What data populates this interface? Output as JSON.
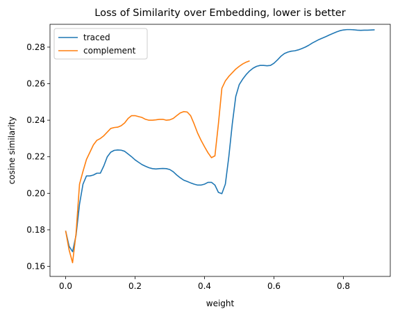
{
  "chart_data": {
    "type": "line",
    "title": "Loss of Similarity over Embedding, lower is better",
    "xlabel": "weight",
    "ylabel": "cosine similarity",
    "xlim": [
      -0.045,
      0.935
    ],
    "ylim": [
      0.1545,
      0.2925
    ],
    "xticks": [
      0.0,
      0.2,
      0.4,
      0.6,
      0.8
    ],
    "xtick_labels": [
      "0.0",
      "0.2",
      "0.4",
      "0.6",
      "0.8"
    ],
    "yticks": [
      0.16,
      0.18,
      0.2,
      0.22,
      0.24,
      0.26,
      0.28
    ],
    "ytick_labels": [
      "0.16",
      "0.18",
      "0.20",
      "0.22",
      "0.24",
      "0.26",
      "0.28"
    ],
    "grid": false,
    "legend_position": "top-left",
    "series": [
      {
        "name": "traced",
        "color": "#1f77b4",
        "points": [
          [
            0.0,
            0.1795
          ],
          [
            0.01,
            0.171
          ],
          [
            0.02,
            0.168
          ],
          [
            0.03,
            0.177
          ],
          [
            0.04,
            0.194
          ],
          [
            0.05,
            0.205
          ],
          [
            0.06,
            0.2095
          ],
          [
            0.07,
            0.2095
          ],
          [
            0.08,
            0.21
          ],
          [
            0.09,
            0.211
          ],
          [
            0.1,
            0.211
          ],
          [
            0.11,
            0.215
          ],
          [
            0.12,
            0.22
          ],
          [
            0.13,
            0.2225
          ],
          [
            0.14,
            0.2235
          ],
          [
            0.15,
            0.2237
          ],
          [
            0.16,
            0.2236
          ],
          [
            0.17,
            0.223
          ],
          [
            0.18,
            0.2215
          ],
          [
            0.19,
            0.22
          ],
          [
            0.2,
            0.2183
          ],
          [
            0.21,
            0.217
          ],
          [
            0.22,
            0.2157
          ],
          [
            0.23,
            0.2148
          ],
          [
            0.24,
            0.214
          ],
          [
            0.25,
            0.2135
          ],
          [
            0.26,
            0.2133
          ],
          [
            0.27,
            0.2135
          ],
          [
            0.28,
            0.2136
          ],
          [
            0.29,
            0.2135
          ],
          [
            0.3,
            0.213
          ],
          [
            0.31,
            0.2118
          ],
          [
            0.32,
            0.21
          ],
          [
            0.33,
            0.2085
          ],
          [
            0.34,
            0.2072
          ],
          [
            0.35,
            0.2065
          ],
          [
            0.36,
            0.2057
          ],
          [
            0.37,
            0.205
          ],
          [
            0.38,
            0.2045
          ],
          [
            0.39,
            0.2045
          ],
          [
            0.4,
            0.205
          ],
          [
            0.41,
            0.206
          ],
          [
            0.42,
            0.206
          ],
          [
            0.43,
            0.2045
          ],
          [
            0.44,
            0.2005
          ],
          [
            0.45,
            0.1998
          ],
          [
            0.46,
            0.205
          ],
          [
            0.47,
            0.22
          ],
          [
            0.48,
            0.238
          ],
          [
            0.49,
            0.253
          ],
          [
            0.5,
            0.2595
          ],
          [
            0.51,
            0.2625
          ],
          [
            0.52,
            0.265
          ],
          [
            0.53,
            0.267
          ],
          [
            0.54,
            0.2685
          ],
          [
            0.55,
            0.2695
          ],
          [
            0.56,
            0.27
          ],
          [
            0.57,
            0.27
          ],
          [
            0.58,
            0.2698
          ],
          [
            0.59,
            0.27
          ],
          [
            0.6,
            0.2712
          ],
          [
            0.61,
            0.273
          ],
          [
            0.62,
            0.275
          ],
          [
            0.63,
            0.2765
          ],
          [
            0.64,
            0.2773
          ],
          [
            0.65,
            0.2778
          ],
          [
            0.66,
            0.278
          ],
          [
            0.67,
            0.2785
          ],
          [
            0.68,
            0.2792
          ],
          [
            0.69,
            0.28
          ],
          [
            0.7,
            0.281
          ],
          [
            0.71,
            0.2822
          ],
          [
            0.72,
            0.2832
          ],
          [
            0.73,
            0.2842
          ],
          [
            0.74,
            0.285
          ],
          [
            0.75,
            0.2858
          ],
          [
            0.76,
            0.2867
          ],
          [
            0.77,
            0.2875
          ],
          [
            0.78,
            0.2883
          ],
          [
            0.79,
            0.289
          ],
          [
            0.8,
            0.2894
          ],
          [
            0.81,
            0.2896
          ],
          [
            0.82,
            0.2896
          ],
          [
            0.83,
            0.2895
          ],
          [
            0.84,
            0.2893
          ],
          [
            0.85,
            0.2892
          ],
          [
            0.86,
            0.2893
          ],
          [
            0.87,
            0.2893
          ],
          [
            0.88,
            0.2894
          ],
          [
            0.89,
            0.2895
          ]
        ]
      },
      {
        "name": "complement",
        "color": "#ff7f0e",
        "points": [
          [
            0.0,
            0.1795
          ],
          [
            0.01,
            0.169
          ],
          [
            0.02,
            0.162
          ],
          [
            0.03,
            0.178
          ],
          [
            0.04,
            0.205
          ],
          [
            0.05,
            0.212
          ],
          [
            0.06,
            0.2185
          ],
          [
            0.07,
            0.2225
          ],
          [
            0.08,
            0.2265
          ],
          [
            0.09,
            0.229
          ],
          [
            0.1,
            0.23
          ],
          [
            0.11,
            0.2315
          ],
          [
            0.12,
            0.2335
          ],
          [
            0.13,
            0.2355
          ],
          [
            0.14,
            0.236
          ],
          [
            0.15,
            0.2362
          ],
          [
            0.16,
            0.237
          ],
          [
            0.17,
            0.2385
          ],
          [
            0.18,
            0.241
          ],
          [
            0.19,
            0.2425
          ],
          [
            0.2,
            0.2425
          ],
          [
            0.21,
            0.242
          ],
          [
            0.22,
            0.2415
          ],
          [
            0.23,
            0.2405
          ],
          [
            0.24,
            0.24
          ],
          [
            0.25,
            0.24
          ],
          [
            0.26,
            0.2402
          ],
          [
            0.27,
            0.2405
          ],
          [
            0.28,
            0.2405
          ],
          [
            0.29,
            0.24
          ],
          [
            0.3,
            0.2402
          ],
          [
            0.31,
            0.241
          ],
          [
            0.32,
            0.2425
          ],
          [
            0.33,
            0.244
          ],
          [
            0.34,
            0.2447
          ],
          [
            0.35,
            0.2445
          ],
          [
            0.36,
            0.2425
          ],
          [
            0.37,
            0.238
          ],
          [
            0.38,
            0.233
          ],
          [
            0.39,
            0.229
          ],
          [
            0.4,
            0.2255
          ],
          [
            0.41,
            0.2222
          ],
          [
            0.42,
            0.2195
          ],
          [
            0.43,
            0.2205
          ],
          [
            0.44,
            0.238
          ],
          [
            0.45,
            0.2575
          ],
          [
            0.46,
            0.2615
          ],
          [
            0.47,
            0.264
          ],
          [
            0.48,
            0.266
          ],
          [
            0.49,
            0.268
          ],
          [
            0.5,
            0.2695
          ],
          [
            0.51,
            0.2708
          ],
          [
            0.52,
            0.2718
          ],
          [
            0.53,
            0.2725
          ]
        ]
      }
    ]
  }
}
